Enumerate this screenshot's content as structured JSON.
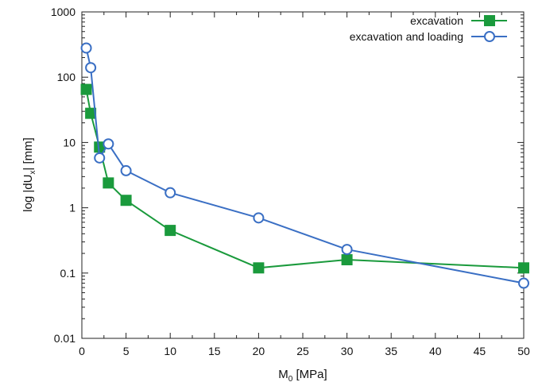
{
  "chart_data": {
    "type": "line",
    "title": "",
    "xlabel": {
      "main": "M",
      "sub": "0",
      "rest": " [MPa]"
    },
    "ylabel": {
      "pre": "log |dU",
      "sub": "x",
      "post": "| [mm]"
    },
    "xlim": [
      0,
      50
    ],
    "ylim": [
      0.01,
      1000
    ],
    "yscale": "log",
    "grid": false,
    "legend_position": "top-right",
    "x_ticks": [
      "0",
      "5",
      "10",
      "15",
      "20",
      "25",
      "30",
      "35",
      "40",
      "45",
      "50"
    ],
    "y_ticks": [
      "0.01",
      "0.1",
      "1",
      "10",
      "100",
      "1000"
    ],
    "series": [
      {
        "name": "excavation",
        "color": "#1a9a3c",
        "marker": "filled-square",
        "x": [
          0.5,
          1,
          2,
          3,
          5,
          10,
          20,
          30,
          50
        ],
        "y": [
          65,
          28,
          8.5,
          2.4,
          1.3,
          0.45,
          0.12,
          0.16,
          0.12
        ]
      },
      {
        "name": "excavation and loading",
        "color": "#3a6fc4",
        "marker": "open-circle",
        "x": [
          0.5,
          1,
          2,
          3,
          5,
          10,
          20,
          30,
          50
        ],
        "y": [
          280,
          140,
          5.8,
          9.5,
          3.7,
          1.7,
          0.7,
          0.23,
          0.07
        ]
      }
    ]
  }
}
